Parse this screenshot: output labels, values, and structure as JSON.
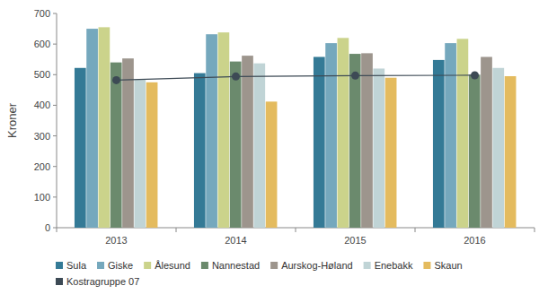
{
  "chart_data": {
    "type": "bar",
    "y_label": "Kroner",
    "categories": [
      "2013",
      "2014",
      "2015",
      "2016"
    ],
    "ylim": [
      0,
      700
    ],
    "yticks": [
      0,
      100,
      200,
      300,
      400,
      500,
      600,
      700
    ],
    "grid": false,
    "legend": "bottom",
    "series": [
      {
        "name": "Sula",
        "color": "#347a96",
        "type": "bar",
        "values": [
          522,
          505,
          558,
          548
        ]
      },
      {
        "name": "Giske",
        "color": "#75a8bd",
        "type": "bar",
        "values": [
          650,
          632,
          603,
          603
        ]
      },
      {
        "name": "Ålesund",
        "color": "#cbd38b",
        "type": "bar",
        "values": [
          655,
          638,
          620,
          617
        ]
      },
      {
        "name": "Nannestad",
        "color": "#6b8a6d",
        "type": "bar",
        "values": [
          540,
          543,
          568,
          500
        ]
      },
      {
        "name": "Aurskog-Høland",
        "color": "#9d958d",
        "type": "bar",
        "values": [
          553,
          562,
          570,
          558
        ]
      },
      {
        "name": "Enebakk",
        "color": "#c0d4d6",
        "type": "bar",
        "values": [
          485,
          537,
          520,
          522
        ]
      },
      {
        "name": "Skaun",
        "color": "#e4bb5e",
        "type": "bar",
        "values": [
          475,
          412,
          490,
          495
        ]
      },
      {
        "name": "Kostragruppe 07",
        "color": "#3d4a55",
        "type": "line",
        "marker": "circle",
        "values": [
          482,
          494,
          497,
          498
        ]
      }
    ]
  }
}
